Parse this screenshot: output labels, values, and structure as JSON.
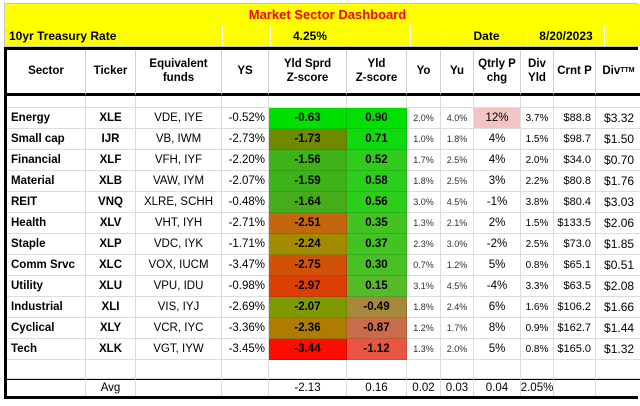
{
  "title": "Market Sector Dashboard",
  "currency": "$",
  "banner": {
    "treasury_label": "10yr Treasury Rate",
    "treasury_rate": "4.25%",
    "date_label": "Date",
    "date_value": "8/20/2023"
  },
  "columns": {
    "sector": "Sector",
    "ticker": "Ticker",
    "equiv": "Equivalent\nfunds",
    "ys": "YS",
    "sprd_z": "Yld Sprd\nZ-score",
    "yld_z": "Yld\nZ-score",
    "yo": "Yo",
    "yu": "Yu",
    "qtrly": "Qtrly P\nchg",
    "div_yld": "Div\nYld",
    "crnt_p": "Crnt P",
    "div_ttm_main": "Div",
    "div_ttm_sub": "TTM"
  },
  "rows": [
    {
      "sector": "Energy",
      "ticker": "XLE",
      "funds": "VDE, IYE",
      "ys": "-0.52%",
      "sprd_z": "-0.63",
      "sprd_z_bg": "#00DF00",
      "yld_z": "0.90",
      "yld_z_bg": "#00DF00",
      "yo": "2.0%",
      "yu": "4.0%",
      "qtrly": "12%",
      "qtrly_bg": "#F2C5C4",
      "div_yld": "3.7%",
      "crnt_p": "$88.8",
      "div_ttm": "3.32"
    },
    {
      "sector": "Small cap",
      "ticker": "IJR",
      "funds": "VB, IWM",
      "ys": "-2.73%",
      "sprd_z": "-1.73",
      "sprd_z_bg": "#6E8A00",
      "yld_z": "0.71",
      "yld_z_bg": "#0FDA10",
      "yo": "1.0%",
      "yu": "1.8%",
      "qtrly": "4%",
      "qtrly_bg": "",
      "div_yld": "1.5%",
      "crnt_p": "$98.7",
      "div_ttm": "1.50"
    },
    {
      "sector": "Financial",
      "ticker": "XLF",
      "funds": "VFH, IYF",
      "ys": "-2.20%",
      "sprd_z": "-1.56",
      "sprd_z_bg": "#3FB21A",
      "yld_z": "0.52",
      "yld_z_bg": "#2FCB1D",
      "yo": "1.7%",
      "yu": "2.5%",
      "qtrly": "4%",
      "qtrly_bg": "",
      "div_yld": "2.0%",
      "crnt_p": "$34.0",
      "div_ttm": "0.70"
    },
    {
      "sector": "Material",
      "ticker": "XLB",
      "funds": "VAW, IYM",
      "ys": "-2.07%",
      "sprd_z": "-1.59",
      "sprd_z_bg": "#3DB31A",
      "yld_z": "0.58",
      "yld_z_bg": "#2BCE1C",
      "yo": "1.8%",
      "yu": "2.5%",
      "qtrly": "3%",
      "qtrly_bg": "",
      "div_yld": "2.2%",
      "crnt_p": "$80.8",
      "div_ttm": "1.76"
    },
    {
      "sector": "REIT",
      "ticker": "VNQ",
      "funds": "XLRE, SCHH",
      "ys": "-0.48%",
      "sprd_z": "-1.64",
      "sprd_z_bg": "#46AC1C",
      "yld_z": "0.56",
      "yld_z_bg": "#2DCD1C",
      "yo": "3.0%",
      "yu": "4.5%",
      "qtrly": "-1%",
      "qtrly_bg": "",
      "div_yld": "3.8%",
      "crnt_p": "$80.4",
      "div_ttm": "3.03"
    },
    {
      "sector": "Health",
      "ticker": "XLV",
      "funds": "VHT, IYH",
      "ys": "-2.71%",
      "sprd_z": "-2.51",
      "sprd_z_bg": "#C3670F",
      "yld_z": "0.35",
      "yld_z_bg": "#43C322",
      "yo": "1.3%",
      "yu": "2.1%",
      "qtrly": "2%",
      "qtrly_bg": "",
      "div_yld": "1.5%",
      "crnt_p": "$133.5",
      "div_ttm": "2.06"
    },
    {
      "sector": "Staple",
      "ticker": "XLP",
      "funds": "VDC, IYK",
      "ys": "-1.71%",
      "sprd_z": "-2.24",
      "sprd_z_bg": "#A38B00",
      "yld_z": "0.37",
      "yld_z_bg": "#41C421",
      "yo": "2.3%",
      "yu": "3.0%",
      "qtrly": "-2%",
      "qtrly_bg": "",
      "div_yld": "2.5%",
      "crnt_p": "$73.0",
      "div_ttm": "1.85"
    },
    {
      "sector": "Comm Srvc",
      "ticker": "XLC",
      "funds": "VOX, IUCM",
      "ys": "-3.47%",
      "sprd_z": "-2.75",
      "sprd_z_bg": "#D05208",
      "yld_z": "0.30",
      "yld_z_bg": "#47C125",
      "yo": "0.7%",
      "yu": "1.2%",
      "qtrly": "5%",
      "qtrly_bg": "",
      "div_yld": "0.8%",
      "crnt_p": "$65.1",
      "div_ttm": "0.51"
    },
    {
      "sector": "Utility",
      "ticker": "XLU",
      "funds": "VPU, IDU",
      "ys": "-0.98%",
      "sprd_z": "-2.97",
      "sprd_z_bg": "#DC3F04",
      "yld_z": "0.15",
      "yld_z_bg": "#56BA2B",
      "yo": "3.1%",
      "yu": "4.5%",
      "qtrly": "-4%",
      "qtrly_bg": "",
      "div_yld": "3.3%",
      "crnt_p": "$63.5",
      "div_ttm": "2.08"
    },
    {
      "sector": "Industrial",
      "ticker": "XLI",
      "funds": "VIS, IYJ",
      "ys": "-2.69%",
      "sprd_z": "-2.07",
      "sprd_z_bg": "#7E9A02",
      "yld_z": "-0.49",
      "yld_z_bg": "#A8883A",
      "yo": "1.8%",
      "yu": "2.4%",
      "qtrly": "6%",
      "qtrly_bg": "",
      "div_yld": "1.6%",
      "crnt_p": "$106.2",
      "div_ttm": "1.66"
    },
    {
      "sector": "Cyclical",
      "ticker": "XLY",
      "funds": "VCR, IYC",
      "ys": "-3.36%",
      "sprd_z": "-2.36",
      "sprd_z_bg": "#AE7C00",
      "yld_z": "-0.87",
      "yld_z_bg": "#C86C4C",
      "yo": "1.2%",
      "yu": "1.7%",
      "qtrly": "8%",
      "qtrly_bg": "",
      "div_yld": "0.9%",
      "crnt_p": "$162.7",
      "div_ttm": "1.44"
    },
    {
      "sector": "Tech",
      "ticker": "XLK",
      "funds": "VGT, IYW",
      "ys": "-3.45%",
      "sprd_z": "-3.44",
      "sprd_z_bg": "#FB0D00",
      "yld_z": "-1.12",
      "yld_z_bg": "#E95541",
      "yo": "1.3%",
      "yu": "2.0%",
      "qtrly": "5%",
      "qtrly_bg": "",
      "div_yld": "0.8%",
      "crnt_p": "$165.0",
      "div_ttm": "1.32"
    }
  ],
  "avg": {
    "label": "Avg",
    "sprd_z": "-2.13",
    "yld_z": "0.16",
    "yo": "0.02",
    "yu": "0.03",
    "qtrly": "0.04",
    "div_yld": "2.05%"
  }
}
